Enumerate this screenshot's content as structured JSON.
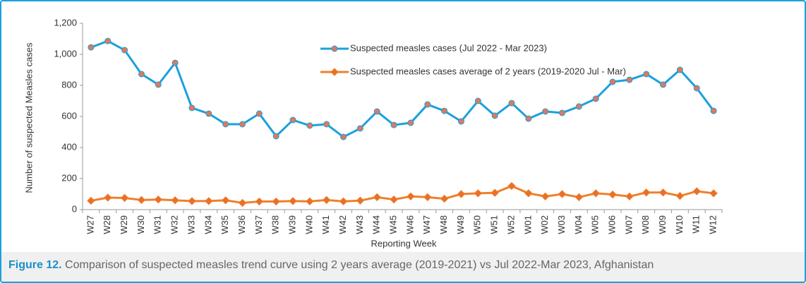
{
  "chart_data": {
    "type": "line",
    "y_label": "Number of suspected Measles cases",
    "x_label": "Reporting Week",
    "caption_label": "Figure 12.",
    "caption": "Comparison of suspected measles trend curve using 2 years average (2019-2021) vs Jul 2022-Mar 2023, Afghanistan",
    "categories": [
      "W27",
      "W28",
      "W29",
      "W30",
      "W31",
      "W32",
      "W33",
      "W34",
      "W35",
      "W36",
      "W37",
      "W38",
      "W39",
      "W40",
      "W41",
      "W42",
      "W43",
      "W44",
      "W45",
      "W46",
      "W47",
      "W48",
      "W49",
      "W50",
      "W51",
      "W52",
      "W01",
      "W02",
      "W03",
      "W04",
      "W05",
      "W06",
      "W07",
      "W08",
      "W09",
      "W10",
      "W11",
      "W12"
    ],
    "series": [
      {
        "name": "Suspected measles cases (Jul 2022 - Mar 2023)",
        "color": "#1ca0dc",
        "marker": "circle",
        "marker_color": "#e0785a",
        "values": [
          1045,
          1086,
          1027,
          873,
          805,
          945,
          655,
          618,
          550,
          550,
          618,
          473,
          577,
          541,
          550,
          468,
          523,
          632,
          545,
          559,
          677,
          636,
          568,
          700,
          605,
          686,
          586,
          632,
          623,
          664,
          714,
          823,
          836,
          873,
          805,
          900,
          782,
          636
        ]
      },
      {
        "name": "Suspected measles cases average of 2 years (2019-2020 Jul - Mar)",
        "color": "#f07f2a",
        "marker": "diamond",
        "marker_color": "#e8702a",
        "values": [
          57,
          77,
          75,
          62,
          65,
          60,
          55,
          55,
          60,
          43,
          52,
          52,
          55,
          53,
          62,
          53,
          58,
          80,
          65,
          85,
          80,
          70,
          100,
          105,
          108,
          152,
          105,
          85,
          100,
          80,
          105,
          97,
          85,
          110,
          110,
          88,
          118,
          105
        ]
      }
    ],
    "ylim": [
      0,
      1200
    ],
    "yticks": [
      0,
      200,
      400,
      600,
      800,
      {
        "value": 1000,
        "label": "1,000"
      },
      {
        "value": 1200,
        "label": "1,200"
      }
    ],
    "grid": false
  }
}
